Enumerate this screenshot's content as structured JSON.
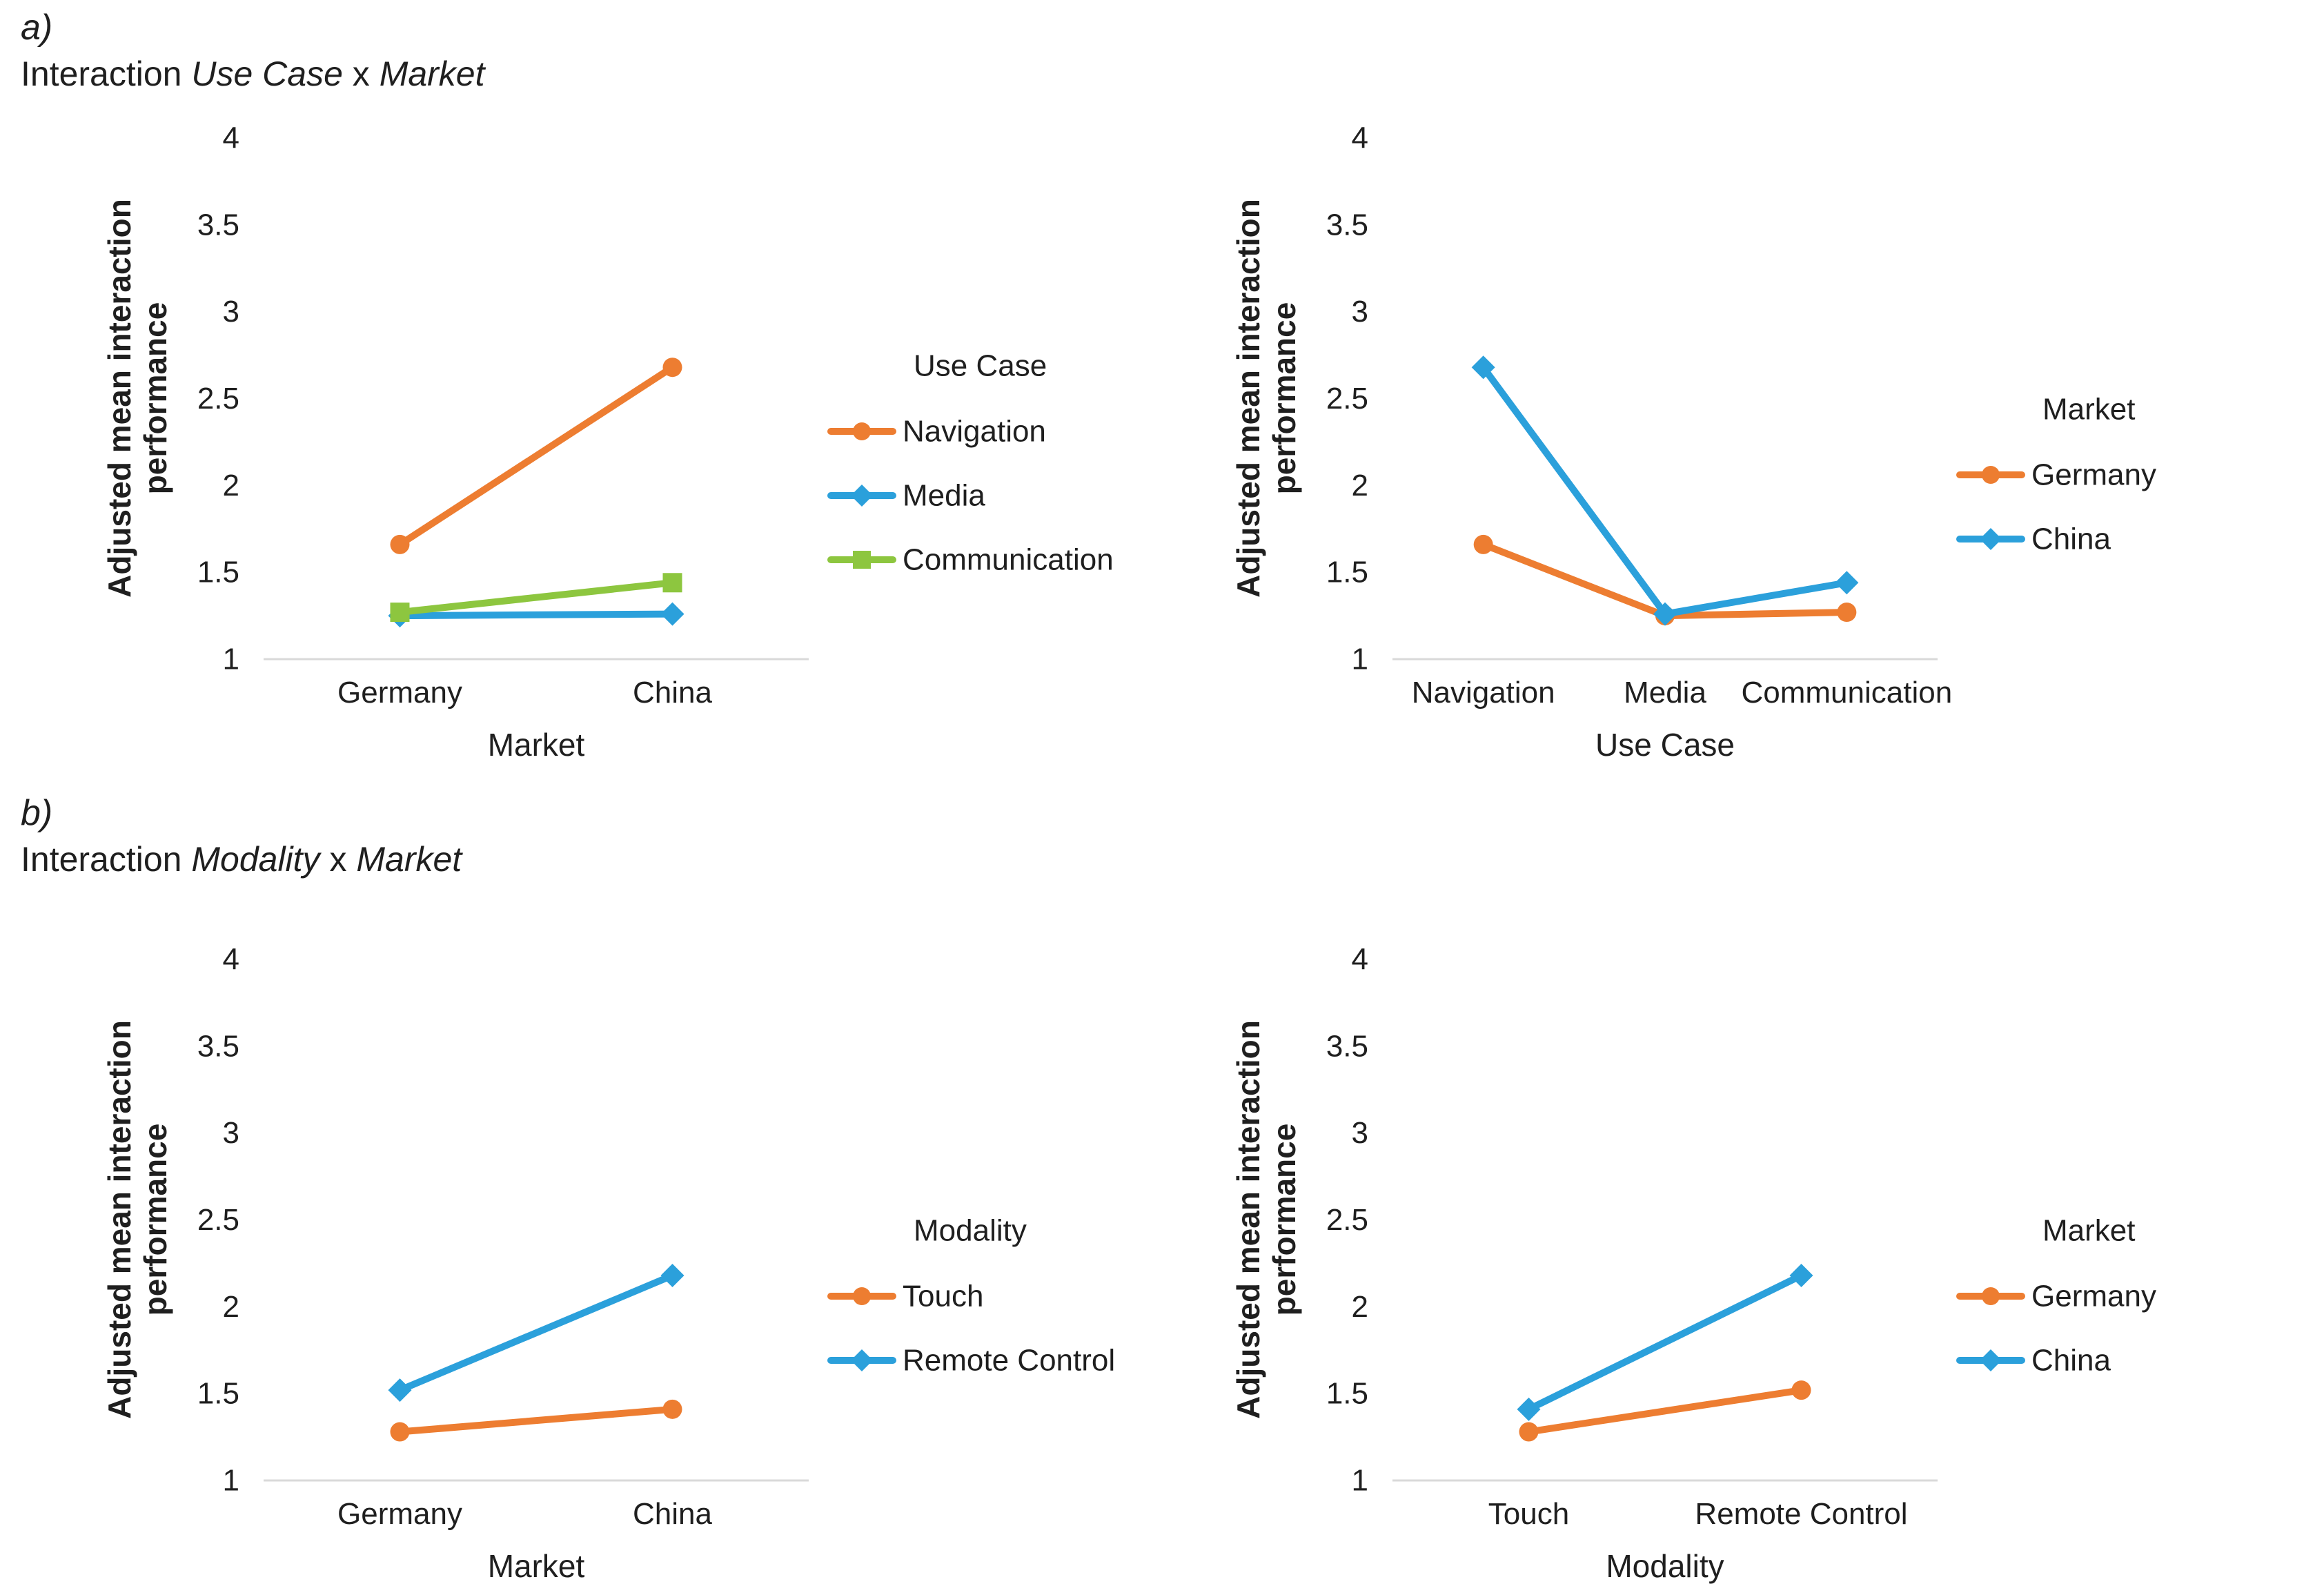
{
  "page": {
    "background": "#FFFFFF"
  },
  "colors": {
    "text": "#1F1F1F",
    "axis_line": "#D9D9D9",
    "orange": "#ED7D31",
    "blue": "#2BA0DB",
    "green": "#8DC63F"
  },
  "sections": [
    {
      "label": "a)",
      "title": "Interaction Use Case x Market",
      "title_parts": [
        [
          "Interaction ",
          false
        ],
        [
          "Use Case",
          true
        ],
        [
          " x ",
          false
        ],
        [
          "Market",
          true
        ]
      ]
    },
    {
      "label": "b)",
      "title": "Interaction Modality x Market",
      "title_parts": [
        [
          "Interaction ",
          false
        ],
        [
          "Modality",
          true
        ],
        [
          " x ",
          false
        ],
        [
          "Market",
          true
        ]
      ]
    }
  ],
  "chart_data": [
    {
      "id": "usecase-x-market-vs-market",
      "type": "line",
      "section": "a",
      "xlabel": "Market",
      "ylabel": "Adjusted mean interaction performance",
      "ylabel_lines": [
        "Adjusted mean interaction",
        "performance"
      ],
      "categories": [
        "Germany",
        "China"
      ],
      "ylim": [
        1,
        4
      ],
      "yticks": [
        4,
        3.5,
        3,
        2.5,
        2,
        1.5,
        1
      ],
      "grid": false,
      "legend_position": "right",
      "legend_title": "Use Case",
      "series": [
        {
          "name": "Navigation",
          "color": "#ED7D31",
          "marker": "circle",
          "values": [
            1.66,
            2.68
          ]
        },
        {
          "name": "Media",
          "color": "#2BA0DB",
          "marker": "diamond",
          "values": [
            1.25,
            1.26
          ]
        },
        {
          "name": "Communication",
          "color": "#8DC63F",
          "marker": "square",
          "values": [
            1.27,
            1.44
          ]
        }
      ]
    },
    {
      "id": "usecase-x-market-vs-usecase",
      "type": "line",
      "section": "a",
      "xlabel": "Use Case",
      "ylabel": "Adjusted mean interaction performance",
      "ylabel_lines": [
        "Adjusted mean interaction",
        "performance"
      ],
      "categories": [
        "Navigation",
        "Media",
        "Communication"
      ],
      "ylim": [
        1,
        4
      ],
      "yticks": [
        4,
        3.5,
        3,
        2.5,
        2,
        1.5,
        1
      ],
      "grid": false,
      "legend_position": "right",
      "legend_title": "Market",
      "series": [
        {
          "name": "Germany",
          "color": "#ED7D31",
          "marker": "circle",
          "values": [
            1.66,
            1.25,
            1.27
          ]
        },
        {
          "name": "China",
          "color": "#2BA0DB",
          "marker": "diamond",
          "values": [
            2.68,
            1.26,
            1.44
          ]
        }
      ]
    },
    {
      "id": "modality-x-market-vs-market",
      "type": "line",
      "section": "b",
      "xlabel": "Market",
      "ylabel": "Adjusted mean interaction performance",
      "ylabel_lines": [
        "Adjusted mean interaction",
        "performance"
      ],
      "categories": [
        "Germany",
        "China"
      ],
      "ylim": [
        1,
        4
      ],
      "yticks": [
        4,
        3.5,
        3,
        2.5,
        2,
        1.5,
        1
      ],
      "grid": false,
      "legend_position": "right",
      "legend_title": "Modality",
      "series": [
        {
          "name": "Touch",
          "color": "#ED7D31",
          "marker": "circle",
          "values": [
            1.28,
            1.41
          ]
        },
        {
          "name": "Remote Control",
          "color": "#2BA0DB",
          "marker": "diamond",
          "values": [
            1.52,
            2.18
          ]
        }
      ]
    },
    {
      "id": "modality-x-market-vs-modality",
      "type": "line",
      "section": "b",
      "xlabel": "Modality",
      "ylabel": "Adjusted mean interaction performance",
      "ylabel_lines": [
        "Adjusted mean interaction",
        "performance"
      ],
      "categories": [
        "Touch",
        "Remote Control"
      ],
      "ylim": [
        1,
        4
      ],
      "yticks": [
        4,
        3.5,
        3,
        2.5,
        2,
        1.5,
        1
      ],
      "grid": false,
      "legend_position": "right",
      "legend_title": "Market",
      "series": [
        {
          "name": "Germany",
          "color": "#ED7D31",
          "marker": "circle",
          "values": [
            1.28,
            1.52
          ]
        },
        {
          "name": "China",
          "color": "#2BA0DB",
          "marker": "diamond",
          "values": [
            1.41,
            2.18
          ]
        }
      ]
    }
  ]
}
